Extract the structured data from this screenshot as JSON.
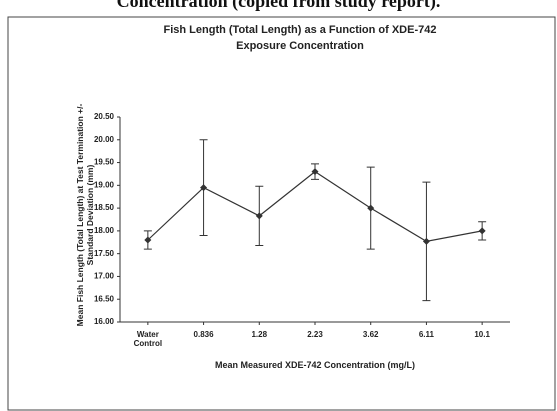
{
  "caption": "Concentration (copied from study report).",
  "chart_data": {
    "type": "line",
    "title": "Fish Length (Total Length) as a Function of XDE-742 Exposure Concentration",
    "x_label": "Mean Measured XDE-742 Concentration (mg/L)",
    "y_label": "Mean Fish Length (Total Length) at Test Termination +/- Standard Deviation (mm)",
    "categories": [
      "Water Control",
      "0.836",
      "1.28",
      "2.23",
      "3.62",
      "6.11",
      "10.1"
    ],
    "series": [
      {
        "color": "#333333",
        "values": [
          17.8,
          18.95,
          18.33,
          19.3,
          18.5,
          17.77,
          18.0
        ],
        "errors": [
          0.2,
          1.05,
          0.65,
          0.17,
          0.9,
          1.3,
          0.2
        ]
      }
    ],
    "ylim": [
      16,
      20.5
    ],
    "yticks": [
      {
        "value": 16,
        "label": "16.00"
      },
      {
        "value": 16.5,
        "label": "16.50"
      },
      {
        "value": 17,
        "label": "17.00"
      },
      {
        "value": 17.5,
        "label": "17.50"
      },
      {
        "value": 18,
        "label": "18.00"
      },
      {
        "value": 18.5,
        "label": "18.50"
      },
      {
        "value": 19,
        "label": "19.00"
      },
      {
        "value": 19.5,
        "label": "19.50"
      },
      {
        "value": 20,
        "label": "20.00"
      },
      {
        "value": 20.5,
        "label": "20.50"
      }
    ],
    "grid": false
  }
}
